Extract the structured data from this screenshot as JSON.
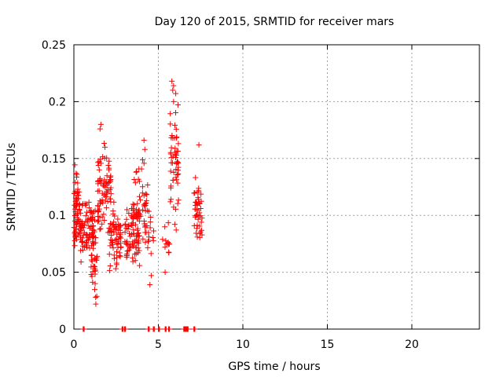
{
  "chart_data": {
    "type": "scatter",
    "title": "Day 120 of 2015, SRMTID for receiver mars",
    "xlabel": "GPS time / hours",
    "ylabel": "SRMTID / TECUs",
    "xlim": [
      0,
      24
    ],
    "ylim": [
      0,
      0.25
    ],
    "xticks": [
      0,
      5,
      10,
      15,
      20
    ],
    "xtick_labels": [
      "0",
      "5",
      "10",
      "15",
      "20"
    ],
    "yticks": [
      0,
      0.05,
      0.1,
      0.15,
      0.2,
      0.25
    ],
    "ytick_labels": [
      "0",
      "0.05",
      "0.1",
      "0.15",
      "0.2",
      "0.25"
    ],
    "grid": true,
    "marker": "+",
    "color": "#ff0000",
    "clusters": [
      {
        "x0": 0.0,
        "x1": 0.4,
        "ymin": 0.05,
        "ymax": 0.15,
        "n": 70
      },
      {
        "x0": 0.4,
        "x1": 1.3,
        "ymin": 0.05,
        "ymax": 0.125,
        "n": 90
      },
      {
        "x0": 1.0,
        "x1": 1.4,
        "ymin": 0.02,
        "ymax": 0.09,
        "n": 25
      },
      {
        "x0": 1.4,
        "x1": 2.2,
        "ymin": 0.07,
        "ymax": 0.18,
        "n": 80
      },
      {
        "x0": 2.1,
        "x1": 2.8,
        "ymin": 0.04,
        "ymax": 0.12,
        "n": 65
      },
      {
        "x0": 3.0,
        "x1": 3.9,
        "ymin": 0.04,
        "ymax": 0.13,
        "n": 80
      },
      {
        "x0": 3.5,
        "x1": 4.4,
        "ymin": 0.06,
        "ymax": 0.16,
        "n": 50
      },
      {
        "x0": 4.3,
        "x1": 4.8,
        "ymin": 0.04,
        "ymax": 0.12,
        "n": 15
      },
      {
        "x0": 5.2,
        "x1": 5.7,
        "ymin": 0.05,
        "ymax": 0.11,
        "n": 12
      },
      {
        "x0": 5.7,
        "x1": 6.2,
        "ymin": 0.06,
        "ymax": 0.22,
        "n": 55
      },
      {
        "x0": 7.1,
        "x1": 7.6,
        "ymin": 0.07,
        "ymax": 0.14,
        "n": 45
      }
    ],
    "extra_points": [
      {
        "x": 5.8,
        "y": 0.218
      },
      {
        "x": 5.9,
        "y": 0.214
      },
      {
        "x": 5.85,
        "y": 0.21
      },
      {
        "x": 5.9,
        "y": 0.2
      },
      {
        "x": 1.6,
        "y": 0.18
      },
      {
        "x": 1.55,
        "y": 0.176
      },
      {
        "x": 4.15,
        "y": 0.166
      },
      {
        "x": 4.2,
        "y": 0.158
      },
      {
        "x": 7.4,
        "y": 0.162
      },
      {
        "x": 1.3,
        "y": 0.022
      },
      {
        "x": 4.5,
        "y": 0.039
      },
      {
        "x": 5.4,
        "y": 0.05
      }
    ],
    "zero_points": [
      0.55,
      2.85,
      3.0,
      4.4,
      4.7,
      5.0,
      5.4,
      5.6,
      6.5,
      6.6,
      6.7,
      7.1
    ],
    "zero_run_points": 3
  }
}
